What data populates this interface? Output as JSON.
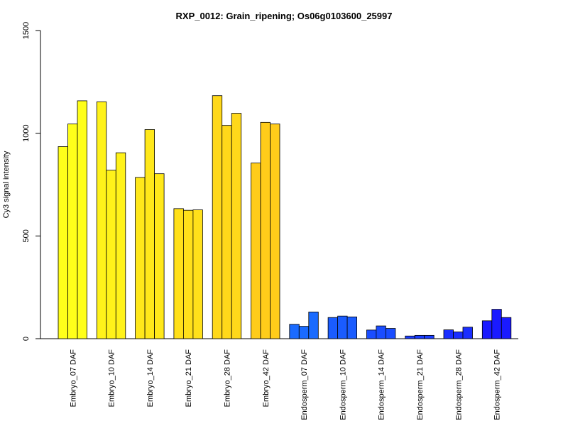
{
  "chart_data": {
    "type": "bar",
    "title": "RXP_0012: Grain_ripening; Os06g0103600_25997",
    "xlabel": "",
    "ylabel": "Cy3 signal intensity",
    "ylim": [
      0,
      1500
    ],
    "yticks": [
      0,
      500,
      1000,
      1500
    ],
    "grid": false,
    "categories": [
      "Embryo_07 DAF",
      "Embryo_10 DAF",
      "Embryo_14 DAF",
      "Embryo_21 DAF",
      "Embryo_28 DAF",
      "Embryo_42 DAF",
      "Endosperm_07 DAF",
      "Endosperm_10 DAF",
      "Endosperm_14 DAF",
      "Endosperm_21 DAF",
      "Endosperm_28 DAF",
      "Endosperm_42 DAF"
    ],
    "groups": [
      {
        "label": "Embryo_07 DAF",
        "color": "#FFFF1A",
        "values": [
          935,
          1045,
          1158
        ]
      },
      {
        "label": "Embryo_10 DAF",
        "color": "#FFF21A",
        "values": [
          1153,
          820,
          905
        ]
      },
      {
        "label": "Embryo_14 DAF",
        "color": "#FFE81A",
        "values": [
          785,
          1018,
          803
        ]
      },
      {
        "label": "Embryo_21 DAF",
        "color": "#FFE01A",
        "values": [
          633,
          625,
          627
        ]
      },
      {
        "label": "Embryo_28 DAF",
        "color": "#FFD81A",
        "values": [
          1183,
          1038,
          1097
        ]
      },
      {
        "label": "Embryo_42 DAF",
        "color": "#FFCC1A",
        "values": [
          855,
          1053,
          1045
        ]
      },
      {
        "label": "Endosperm_07 DAF",
        "color": "#1A6BFF",
        "values": [
          70,
          60,
          130
        ]
      },
      {
        "label": "Endosperm_10 DAF",
        "color": "#1A5CFF",
        "values": [
          103,
          110,
          106
        ]
      },
      {
        "label": "Endosperm_14 DAF",
        "color": "#1A4DFF",
        "values": [
          42,
          62,
          50
        ]
      },
      {
        "label": "Endosperm_21 DAF",
        "color": "#1A3DFF",
        "values": [
          13,
          16,
          16
        ]
      },
      {
        "label": "Endosperm_28 DAF",
        "color": "#1A2EFF",
        "values": [
          43,
          33,
          56
        ]
      },
      {
        "label": "Endosperm_42 DAF",
        "color": "#1A1AFF",
        "values": [
          87,
          143,
          103
        ]
      }
    ]
  }
}
